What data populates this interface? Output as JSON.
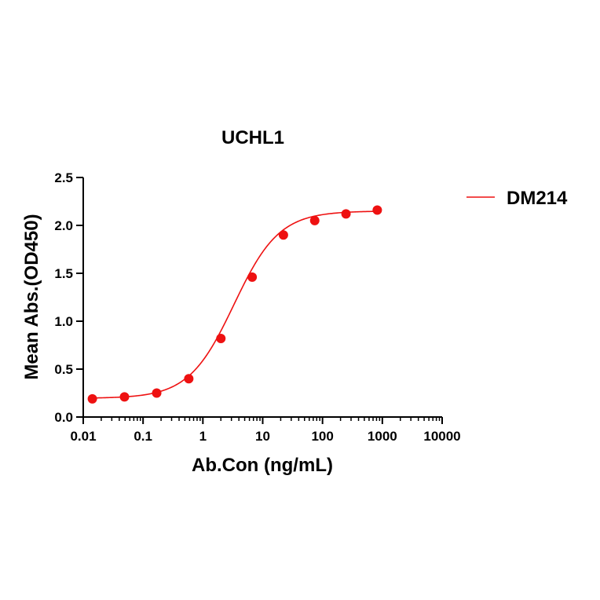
{
  "chart_data": {
    "type": "scatter",
    "title": "UCHL1",
    "xlabel": "Ab.Con (ng/mL)",
    "ylabel": "Mean Abs.(OD450)",
    "x_scale": "log",
    "xlim": [
      0.01,
      10000
    ],
    "ylim": [
      0,
      2.5
    ],
    "x_ticks": [
      0.01,
      0.1,
      1,
      10,
      100,
      1000,
      10000
    ],
    "x_tick_labels": [
      "0.01",
      "0.1",
      "1",
      "10",
      "100",
      "1000",
      "10000"
    ],
    "y_ticks": [
      0,
      0.5,
      1,
      1.5,
      2,
      2.5
    ],
    "y_tick_labels": [
      "0.0",
      "0.5",
      "1.0",
      "1.5",
      "2.0",
      "2.5"
    ],
    "grid": false,
    "legend_position": "top-right",
    "series": [
      {
        "name": "DM214",
        "color": "#ee1111",
        "fit": "four-parameter logistic",
        "x": [
          0.0142,
          0.0489,
          0.169,
          0.581,
          2.0,
          6.67,
          22.2,
          74.1,
          247,
          823
        ],
        "y": [
          0.19,
          0.21,
          0.25,
          0.4,
          0.82,
          1.46,
          1.9,
          2.05,
          2.12,
          2.16
        ]
      }
    ]
  }
}
